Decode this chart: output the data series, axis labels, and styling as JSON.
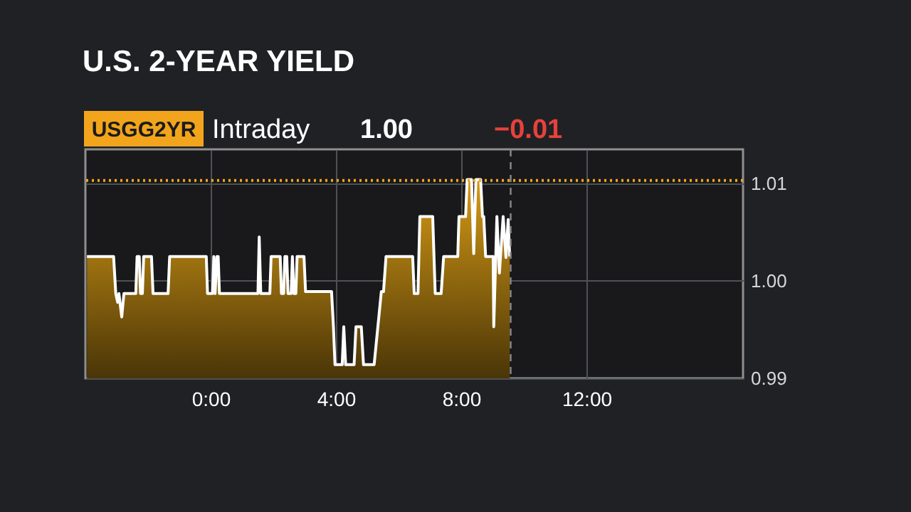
{
  "chart_data": {
    "type": "area",
    "title": "U.S. 2-YEAR YIELD",
    "annotations": [
      "USGG2YR",
      "Intraday",
      "1.00",
      "−0.01"
    ],
    "x": [
      -3.95,
      -3.1,
      -3.03,
      -2.97,
      -2.93,
      -2.84,
      -2.77,
      -2.39,
      -2.35,
      -2.28,
      -2.24,
      -2.18,
      -2.14,
      -1.89,
      -1.84,
      -1.36,
      -1.31,
      -0.14,
      -0.1,
      0.06,
      0.1,
      0.14,
      0.2,
      0.24,
      0.28,
      1.51,
      1.55,
      1.6,
      1.89,
      1.93,
      2.22,
      2.26,
      2.33,
      2.37,
      2.43,
      2.47,
      2.57,
      2.61,
      2.66,
      2.72,
      2.76,
      2.98,
      3.03,
      3.86,
      3.92,
      3.97,
      4.2,
      4.25,
      4.31,
      4.58,
      4.64,
      4.81,
      4.88,
      5.22,
      5.45,
      5.52,
      5.6,
      6.45,
      6.5,
      6.62,
      6.68,
      7.09,
      7.17,
      7.36,
      7.44,
      7.89,
      7.93,
      8.14,
      8.19,
      8.33,
      8.4,
      8.47,
      8.62,
      8.68,
      8.72,
      8.78,
      9.02,
      9.04,
      9.14,
      9.22,
      9.34,
      9.43,
      9.5,
      9.55
    ],
    "series": [
      {
        "color": "#d69a16",
        "values": [
          1.0025,
          1.0025,
          0.9987,
          0.9978,
          0.9987,
          0.9963,
          0.9987,
          0.9987,
          1.0025,
          1.0025,
          0.9987,
          0.9987,
          1.0025,
          1.0025,
          0.9987,
          0.9987,
          1.0025,
          1.0025,
          0.9987,
          0.9987,
          1.0025,
          0.9987,
          1.0025,
          1.0025,
          0.9987,
          0.9987,
          1.0045,
          0.9987,
          0.9987,
          1.0025,
          1.0025,
          0.9987,
          0.9987,
          1.0025,
          1.0025,
          0.9987,
          0.9987,
          1.0025,
          0.9987,
          0.9987,
          1.0025,
          1.0025,
          0.9989,
          0.9989,
          0.9953,
          0.9914,
          0.9914,
          0.9953,
          0.9914,
          0.9914,
          0.9953,
          0.9953,
          0.9914,
          0.9914,
          0.9989,
          0.9989,
          1.0025,
          1.0025,
          0.9987,
          0.9987,
          1.0066,
          1.0066,
          0.9987,
          0.9987,
          1.0025,
          1.0025,
          1.0066,
          1.0066,
          1.0104,
          1.0104,
          1.0028,
          1.0104,
          1.0104,
          1.0066,
          1.0066,
          1.0025,
          1.0025,
          0.9953,
          1.0066,
          1.0008,
          1.0066,
          1.0024,
          1.0063,
          1.0025
        ]
      }
    ],
    "xlim": [
      -4,
      17
    ],
    "xticks": [
      {
        "value": 0,
        "label": "0:00"
      },
      {
        "value": 4,
        "label": "4:00"
      },
      {
        "value": 8,
        "label": "8:00"
      },
      {
        "value": 12,
        "label": "12:00"
      }
    ],
    "ylim": [
      0.99,
      1.0135
    ],
    "yticks": [
      0.99,
      {
        "value": 1,
        "label": "1.00"
      },
      1.01
    ],
    "grid": true,
    "ref_lines": [
      {
        "axis": "y",
        "value": 1.0103,
        "color": "#f0a820",
        "line_style": "dotted"
      },
      {
        "axis": "x",
        "value": 9.58,
        "color": "#8a8a8a",
        "line_style": "dashed"
      }
    ]
  }
}
